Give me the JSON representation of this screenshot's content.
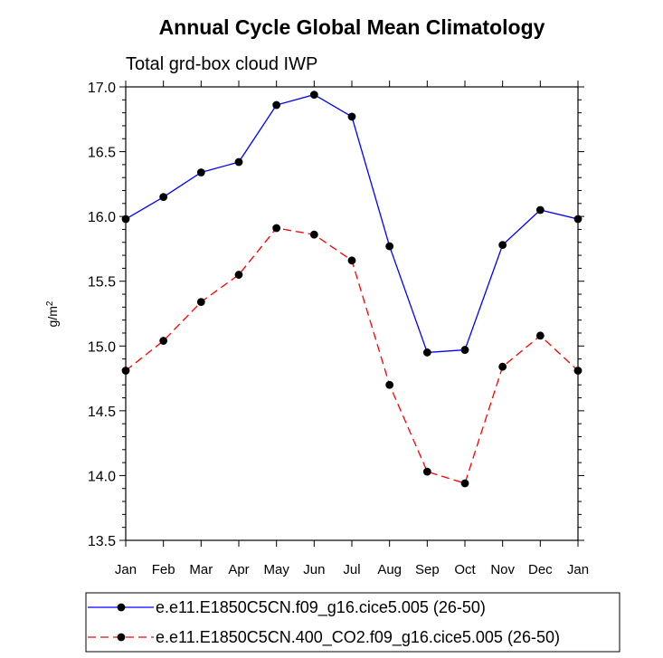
{
  "chart_data": {
    "type": "line",
    "title": "Annual Cycle Global Mean Climatology",
    "subtitle": "Total grd-box cloud IWP",
    "xlabel": "",
    "ylabel": "g/m",
    "ylabel_superscript": "2",
    "categories": [
      "Jan",
      "Feb",
      "Mar",
      "Apr",
      "May",
      "Jun",
      "Jul",
      "Aug",
      "Sep",
      "Oct",
      "Nov",
      "Dec",
      "Jan"
    ],
    "ylim": [
      13.5,
      17.0
    ],
    "yticks": [
      "13.5",
      "14.0",
      "14.5",
      "15.0",
      "15.5",
      "16.0",
      "16.5",
      "17.0"
    ],
    "series": [
      {
        "name": "e.e11.E1850C5CN.f09_g16.cice5.005 (26-50)",
        "color": "#0000ff",
        "dash": "solid",
        "values": [
          15.98,
          16.15,
          16.34,
          16.42,
          16.86,
          16.94,
          16.77,
          15.77,
          14.95,
          14.97,
          15.78,
          16.05,
          15.98
        ]
      },
      {
        "name": "e.e11.E1850C5CN.400_CO2.f09_g16.cice5.005 (26-50)",
        "color": "#ff0000",
        "dash": "dashed",
        "values": [
          14.81,
          15.04,
          15.34,
          15.55,
          15.91,
          15.86,
          15.66,
          14.7,
          14.03,
          13.94,
          14.84,
          15.08,
          14.81
        ]
      }
    ]
  }
}
